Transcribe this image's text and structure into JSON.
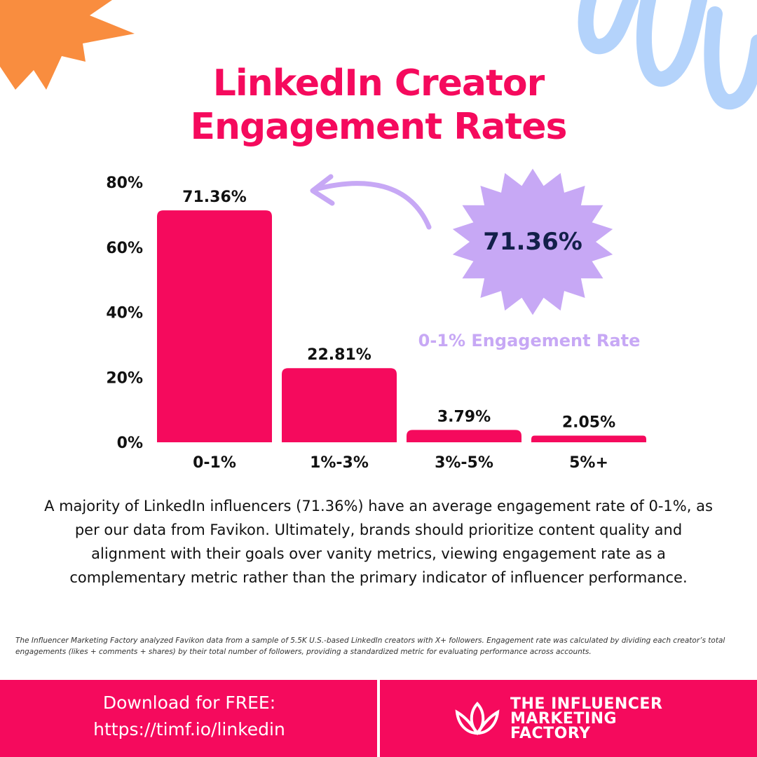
{
  "title": {
    "line1": "LinkedIn Creator",
    "line2": "Engagement Rates"
  },
  "chart_data": {
    "type": "bar",
    "categories": [
      "0-1%",
      "1%-3%",
      "3%-5%",
      "5%+"
    ],
    "values": [
      71.36,
      22.81,
      3.79,
      2.05
    ],
    "value_labels": [
      "71.36%",
      "22.81%",
      "3.79%",
      "2.05%"
    ],
    "yticks": [
      0,
      20,
      40,
      60,
      80
    ],
    "ytick_labels": [
      "0%",
      "20%",
      "40%",
      "60%",
      "80%"
    ],
    "ylim": [
      0,
      80
    ],
    "xlabel": "",
    "ylabel": "",
    "grid": false,
    "bar_color": "#f50a5d"
  },
  "callout": {
    "value": "71.36%",
    "label": "0-1% Engagement Rate"
  },
  "description": "A majority of LinkedIn influencers (71.36%) have an average engagement rate of 0-1%, as per our data from Favikon. Ultimately, brands should prioritize content quality and alignment with their goals over vanity metrics, viewing engagement rate as a complementary metric rather than the primary indicator of influencer performance.",
  "footnote": "The Influencer Marketing Factory analyzed Favikon data from a sample of 5.5K U.S.-based LinkedIn creators with X+ followers. Engagement rate was calculated by dividing each creator’s total engagements (likes + comments + shares) by their total number of followers, providing a standardized metric for evaluating performance across accounts.",
  "footer": {
    "download_line1": "Download for FREE:",
    "download_line2": "https://timf.io/linkedin",
    "logo_line1": "THE INFLUENCER",
    "logo_line2": "MARKETING",
    "logo_line3": "FACTORY",
    "logo_icon": "lotus-icon"
  },
  "colors": {
    "accent": "#f50a5d",
    "callout": "#c7a8f5",
    "callout_text": "#13204a",
    "sun": "#f98d3f",
    "squiggle": "#b4d3fb"
  }
}
